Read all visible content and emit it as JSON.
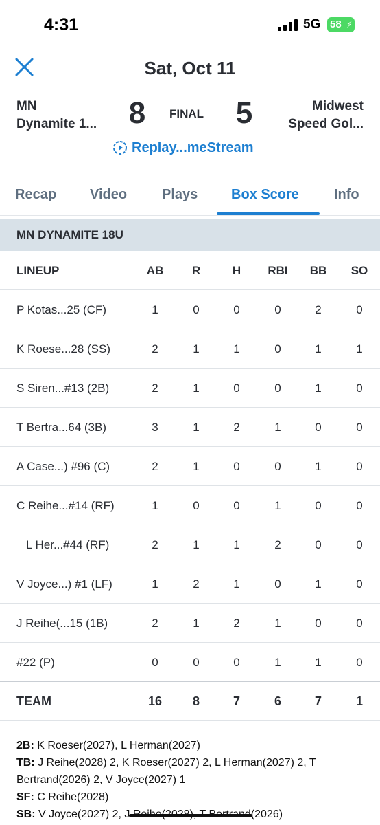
{
  "status_bar": {
    "time": "4:31",
    "network": "5G",
    "battery": "58"
  },
  "header": {
    "date": "Sat, Oct 11",
    "close_icon": "close-x-icon"
  },
  "scoreboard": {
    "left_team_line1": "MN",
    "left_team_line2": "Dynamite 1...",
    "left_score": "8",
    "status": "FINAL",
    "right_score": "5",
    "right_team_line1": "Midwest",
    "right_team_line2": "Speed Gol...",
    "replay_label": "Replay...meStream",
    "replay_icon": "replay-icon"
  },
  "tabs": [
    {
      "label": "Recap",
      "active": false
    },
    {
      "label": "Video",
      "active": false
    },
    {
      "label": "Plays",
      "active": false
    },
    {
      "label": "Box Score",
      "active": true
    },
    {
      "label": "Info",
      "active": false
    }
  ],
  "team_band": "MN DYNAMITE 18U",
  "boxscore": {
    "headers": [
      "LINEUP",
      "AB",
      "R",
      "H",
      "RBI",
      "BB",
      "SO"
    ],
    "rows": [
      {
        "name": "P Kotas...25 (CF)",
        "ab": "1",
        "r": "0",
        "h": "0",
        "rbi": "0",
        "bb": "2",
        "so": "0"
      },
      {
        "name": "K Roese...28 (SS)",
        "ab": "2",
        "r": "1",
        "h": "1",
        "rbi": "0",
        "bb": "1",
        "so": "1"
      },
      {
        "name": "S Siren...#13 (2B)",
        "ab": "2",
        "r": "1",
        "h": "0",
        "rbi": "0",
        "bb": "1",
        "so": "0"
      },
      {
        "name": "T Bertra...64 (3B)",
        "ab": "3",
        "r": "1",
        "h": "2",
        "rbi": "1",
        "bb": "0",
        "so": "0"
      },
      {
        "name": "A Case...) #96 (C)",
        "ab": "2",
        "r": "1",
        "h": "0",
        "rbi": "0",
        "bb": "1",
        "so": "0"
      },
      {
        "name": "C Reihe...#14 (RF)",
        "ab": "1",
        "r": "0",
        "h": "0",
        "rbi": "1",
        "bb": "0",
        "so": "0"
      },
      {
        "name": "L Her...#44 (RF)",
        "ab": "2",
        "r": "1",
        "h": "1",
        "rbi": "2",
        "bb": "0",
        "so": "0"
      },
      {
        "name": "V Joyce...) #1 (LF)",
        "ab": "1",
        "r": "2",
        "h": "1",
        "rbi": "0",
        "bb": "1",
        "so": "0"
      },
      {
        "name": "J Reihe(...15 (1B)",
        "ab": "2",
        "r": "1",
        "h": "2",
        "rbi": "1",
        "bb": "0",
        "so": "0"
      },
      {
        "name": "#22 (P)",
        "ab": "0",
        "r": "0",
        "h": "0",
        "rbi": "1",
        "bb": "1",
        "so": "0"
      }
    ],
    "totals": {
      "name": "TEAM",
      "ab": "16",
      "r": "8",
      "h": "7",
      "rbi": "6",
      "bb": "7",
      "so": "1"
    }
  },
  "notes": [
    {
      "key": "2B:",
      "value": " K Roeser(2027), L Herman(2027)"
    },
    {
      "key": "TB:",
      "value": " J Reihe(2028) 2, K Roeser(2027) 2, L Herman(2027) 2, T Bertrand(2026) 2, V Joyce(2027) 1"
    },
    {
      "key": "SF:",
      "value": " C Reihe(2028)"
    },
    {
      "key": "SB:",
      "value": " V Joyce(2027) 2, J Reihe(2028), T Bertrand(2026)"
    }
  ],
  "colors": {
    "accent": "#1d7fd1",
    "band": "#d8e1e8",
    "battery": "#4cd964"
  }
}
